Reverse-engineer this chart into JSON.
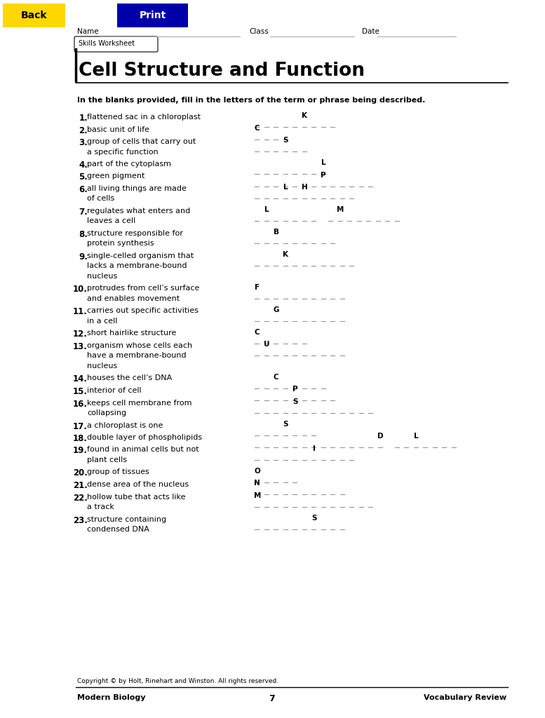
{
  "title": "Cell Structure and Function",
  "subtitle": "Skills Worksheet",
  "instruction": "In the blanks provided, fill in the letters of the term or phrase being described.",
  "back_btn": {
    "text": "Back",
    "bg": "#FFD700",
    "fg": "#000000"
  },
  "print_btn": {
    "text": "Print",
    "bg": "#0000AA",
    "fg": "#ffffff"
  },
  "items": [
    {
      "num": "1",
      "desc": "flattened sac in a chloroplast",
      "pattern": [
        0,
        0,
        0,
        0,
        0,
        "K",
        0,
        0,
        0
      ],
      "lines": 1
    },
    {
      "num": "2",
      "desc": "basic unit of life",
      "pattern": [
        "C",
        0,
        0,
        0
      ],
      "lines": 1
    },
    {
      "num": "3",
      "desc": "group of cells that carry out\na specific function",
      "pattern": [
        0,
        0,
        0,
        "S",
        0,
        0
      ],
      "lines": 2
    },
    {
      "num": "4",
      "desc": "part of the cytoplasm",
      "pattern": [
        0,
        0,
        0,
        0,
        0,
        0,
        0,
        "L"
      ],
      "lines": 1
    },
    {
      "num": "5",
      "desc": "green pigment",
      "pattern": [
        0,
        0,
        0,
        0,
        0,
        0,
        0,
        "P",
        0,
        0,
        0,
        0,
        0
      ],
      "lines": 1
    },
    {
      "num": "6",
      "desc": "all living things are made\nof cells",
      "pattern": [
        0,
        0,
        0,
        "L",
        0,
        "H",
        0,
        0,
        0,
        0,
        0
      ],
      "lines": 2
    },
    {
      "num": "7",
      "desc": "regulates what enters and\nleaves a cell",
      "pattern": [
        0,
        "L",
        0,
        0,
        0,
        0,
        0,
        null,
        0,
        "M",
        0,
        0,
        0,
        0,
        0,
        0
      ],
      "lines": 2
    },
    {
      "num": "8",
      "desc": "structure responsible for\nprotein synthesis",
      "pattern": [
        0,
        0,
        "B",
        0,
        0,
        0,
        0,
        0,
        0
      ],
      "lines": 2
    },
    {
      "num": "9",
      "desc": "single-celled organism that\nlacks a membrane-bound\nnucleus",
      "pattern": [
        0,
        0,
        0,
        "K",
        0,
        0,
        0,
        0,
        0,
        0,
        0
      ],
      "lines": 3
    },
    {
      "num": "10",
      "desc": "protrudes from cell’s surface\nand enables movement",
      "pattern": [
        "F",
        0,
        0,
        0,
        0,
        0,
        0,
        0,
        0,
        0
      ],
      "lines": 2
    },
    {
      "num": "11",
      "desc": "carries out specific activities\nin a cell",
      "pattern": [
        0,
        0,
        "G",
        0,
        0,
        0,
        0,
        0,
        0,
        0
      ],
      "lines": 2
    },
    {
      "num": "12",
      "desc": "short hairlike structure",
      "pattern": [
        "C",
        0,
        0,
        0,
        0,
        0
      ],
      "lines": 1
    },
    {
      "num": "13",
      "desc": "organism whose cells each\nhave a membrane-bound\nnucleus",
      "pattern": [
        0,
        "U",
        0,
        0,
        0,
        0,
        0,
        0,
        0,
        0
      ],
      "lines": 3
    },
    {
      "num": "14",
      "desc": "houses the cell’s DNA",
      "pattern": [
        0,
        0,
        "C",
        0,
        0,
        0,
        0,
        0
      ],
      "lines": 1
    },
    {
      "num": "15",
      "desc": "interior of cell",
      "pattern": [
        0,
        0,
        0,
        0,
        "P",
        0,
        0,
        0,
        0
      ],
      "lines": 1
    },
    {
      "num": "16",
      "desc": "keeps cell membrane from\ncollapsing",
      "pattern": [
        0,
        0,
        0,
        0,
        "S",
        0,
        0,
        0,
        0,
        0,
        0,
        0,
        0
      ],
      "lines": 2
    },
    {
      "num": "17",
      "desc": "a chloroplast is one",
      "pattern": [
        0,
        0,
        0,
        "S",
        0,
        0,
        0
      ],
      "lines": 1
    },
    {
      "num": "18",
      "desc": "double layer of phospholipids",
      "pattern": [
        0,
        0,
        0,
        0,
        0,
        0,
        0,
        0,
        0,
        0,
        0,
        0,
        0,
        "D",
        null,
        0,
        0,
        "L",
        0,
        0,
        0,
        0
      ],
      "lines": 1
    },
    {
      "num": "19",
      "desc": "found in animal cells but not\nplant cells",
      "pattern": [
        0,
        0,
        0,
        0,
        0,
        0,
        "I",
        0,
        0,
        0,
        0
      ],
      "lines": 2
    },
    {
      "num": "20",
      "desc": "group of tissues",
      "pattern": [
        "O",
        0,
        0,
        0,
        0
      ],
      "lines": 1
    },
    {
      "num": "21",
      "desc": "dense area of the nucleus",
      "pattern": [
        "N",
        0,
        0,
        0,
        0,
        0,
        0,
        0,
        0,
        0
      ],
      "lines": 1
    },
    {
      "num": "22",
      "desc": "hollow tube that acts like\na track",
      "pattern": [
        "M",
        0,
        0,
        0,
        0,
        0,
        0,
        0,
        0,
        0,
        0,
        0,
        0
      ],
      "lines": 2
    },
    {
      "num": "23",
      "desc": "structure containing\ncondensed DNA",
      "pattern": [
        0,
        0,
        0,
        0,
        0,
        0,
        "S",
        0,
        0,
        0
      ],
      "lines": 2
    }
  ],
  "footer_left": "Modern Biology",
  "footer_center": "7",
  "footer_right": "Vocabulary Review",
  "copyright": "Copyright © by Holt, Rinehart and Winston. All rights reserved.",
  "dash_color": "#888888",
  "hint_color": "#000000"
}
